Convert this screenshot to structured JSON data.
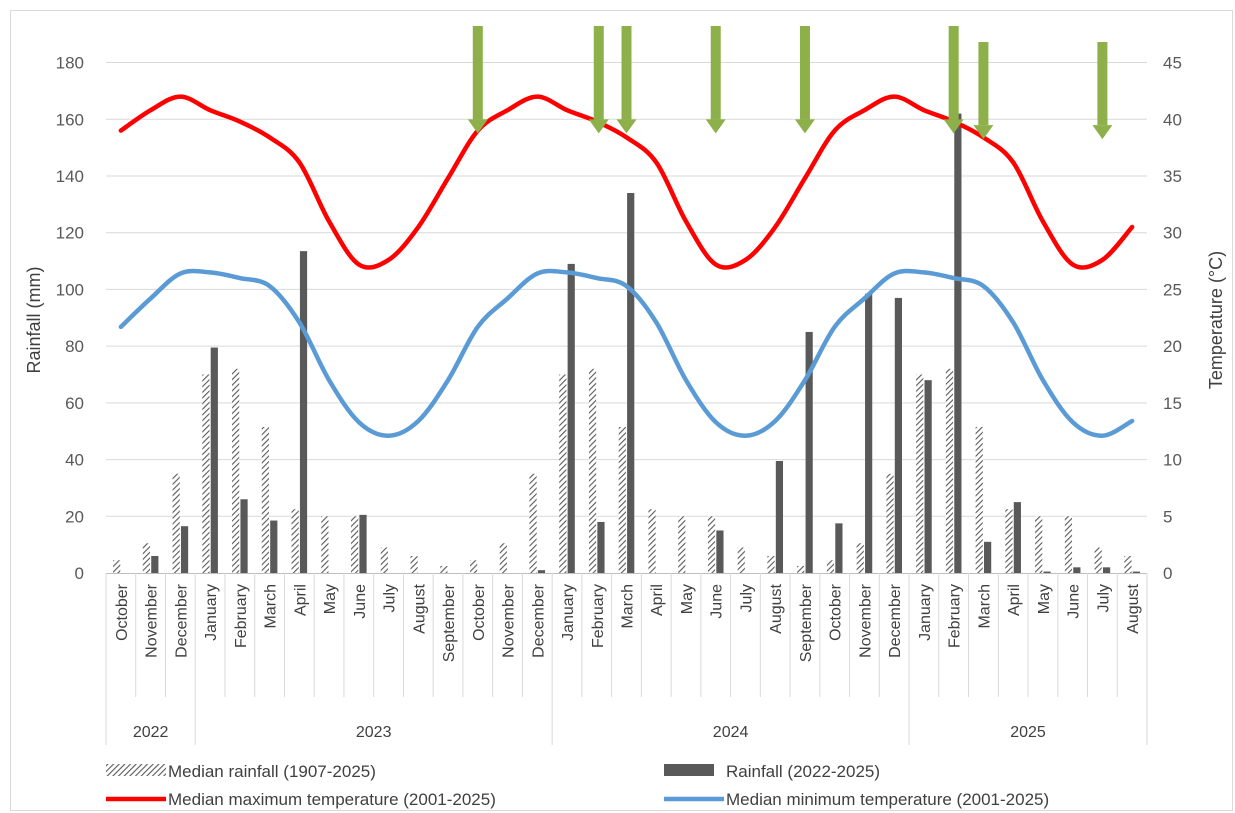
{
  "chart_data": {
    "type": "bar",
    "title": "",
    "ylabel": "Rainfall (mm)",
    "y2label": "Temperature (°C)",
    "ylim": [
      0,
      195
    ],
    "y2lim": [
      0,
      48.75
    ],
    "yticks": [
      0,
      20,
      40,
      60,
      80,
      100,
      120,
      140,
      160,
      180
    ],
    "y2ticks": [
      0,
      5,
      10,
      15,
      20,
      25,
      30,
      35,
      40,
      45
    ],
    "grid": true,
    "legend_position": "bottom",
    "categories": [
      "October",
      "November",
      "December",
      "January",
      "February",
      "March",
      "April",
      "May",
      "June",
      "July",
      "August",
      "September",
      "October",
      "November",
      "December",
      "January",
      "February",
      "March",
      "April",
      "May",
      "June",
      "July",
      "August",
      "September",
      "October",
      "November",
      "December",
      "January",
      "February",
      "March",
      "April",
      "May",
      "June",
      "July",
      "August"
    ],
    "years": [
      {
        "label": "2022",
        "start": 0,
        "count": 3
      },
      {
        "label": "2023",
        "start": 3,
        "count": 12
      },
      {
        "label": "2024",
        "start": 15,
        "count": 12
      },
      {
        "label": "2025",
        "start": 27,
        "count": 8
      }
    ],
    "series": [
      {
        "name": "Median rainfall (1907-2025)",
        "kind": "bar",
        "axis": "left",
        "pattern": "hatched",
        "values": [
          4.5,
          10.5,
          35,
          70,
          72,
          51.5,
          22.5,
          20,
          20,
          9,
          6,
          2.5,
          4.5,
          10.5,
          35,
          70,
          72,
          51.5,
          22.5,
          20,
          20,
          9,
          6,
          2.5,
          4.5,
          10.5,
          35,
          70,
          72,
          51.5,
          22.5,
          20,
          20,
          9,
          6
        ]
      },
      {
        "name": "Rainfall (2022-2025)",
        "kind": "bar",
        "axis": "left",
        "color": "#595959",
        "values": [
          0,
          6,
          16.5,
          79.5,
          26,
          18.5,
          113.5,
          0,
          20.5,
          0,
          0,
          0,
          0,
          0,
          1,
          109,
          18,
          134,
          0,
          0,
          15,
          0,
          39.5,
          85,
          17.5,
          98.5,
          97,
          68,
          162,
          11,
          25,
          0.5,
          2,
          2,
          0.5
        ]
      },
      {
        "name": "Median maximum temperature (2001-2025)",
        "kind": "line",
        "axis": "right",
        "color": "#ff0000",
        "values": [
          39,
          40.8,
          42,
          40.8,
          39.8,
          38.4,
          36.2,
          31,
          27.2,
          27.6,
          30.5,
          34.8,
          39,
          40.8,
          42,
          40.8,
          39.8,
          38.4,
          36.2,
          31,
          27.2,
          27.6,
          30.5,
          34.8,
          39,
          40.8,
          42,
          40.8,
          39.8,
          38.4,
          36.2,
          31,
          27.2,
          27.6,
          30.5
        ]
      },
      {
        "name": "Median minimum temperature (2001-2025)",
        "kind": "line",
        "axis": "right",
        "color": "#5b9bd5",
        "values": [
          21.7,
          24.2,
          26.4,
          26.5,
          26,
          25.3,
          22.1,
          17,
          13.3,
          12.1,
          13.4,
          17,
          21.7,
          24.2,
          26.4,
          26.5,
          26,
          25.3,
          22.1,
          17,
          13.3,
          12.1,
          13.4,
          17,
          21.7,
          24.2,
          26.4,
          26.5,
          26,
          25.3,
          22.1,
          17,
          13.3,
          12.1,
          13.4
        ]
      }
    ],
    "arrow_markers": {
      "color": "#8db04a",
      "indices": [
        12,
        16,
        17,
        20,
        23,
        28,
        29,
        33
      ],
      "tip_values": [
        155,
        155,
        155,
        155,
        155,
        155,
        153,
        153
      ]
    }
  }
}
